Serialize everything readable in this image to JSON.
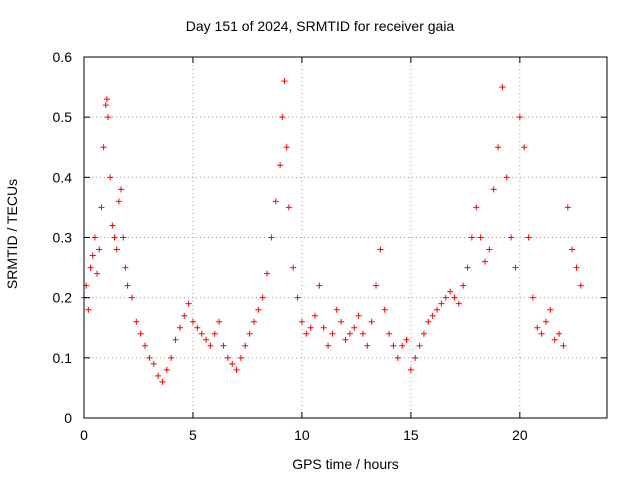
{
  "chart_data": {
    "type": "scatter",
    "title": "Day 151 of 2024, SRMTID for receiver gaia",
    "xlabel": "GPS time / hours",
    "ylabel": "SRMTID / TECUs",
    "xlim": [
      0,
      24
    ],
    "ylim": [
      0,
      0.6
    ],
    "xticks": [
      0,
      5,
      10,
      15,
      20
    ],
    "xtick_labels": [
      "0",
      "5",
      "10",
      "15",
      "20"
    ],
    "yticks": [
      0,
      0.1,
      0.2,
      0.3,
      0.4,
      0.5,
      0.6
    ],
    "ytick_labels": [
      "0",
      "0.1",
      "0.2",
      "0.3",
      "0.4",
      "0.5",
      "0.6"
    ],
    "grid": true,
    "marker": "+",
    "color": "#ff0000",
    "series": [
      {
        "name": "SRMTID",
        "x": [
          0.0,
          0.1,
          0.2,
          0.3,
          0.4,
          0.5,
          0.6,
          0.7,
          0.8,
          0.9,
          1.0,
          1.05,
          1.1,
          1.2,
          1.3,
          1.4,
          1.5,
          1.6,
          1.7,
          1.8,
          1.9,
          2.0,
          2.2,
          2.4,
          2.6,
          2.8,
          3.0,
          3.2,
          3.4,
          3.6,
          3.8,
          4.0,
          4.2,
          4.4,
          4.6,
          4.8,
          5.0,
          5.2,
          5.4,
          5.6,
          5.8,
          6.0,
          6.2,
          6.4,
          6.6,
          6.8,
          7.0,
          7.2,
          7.4,
          7.6,
          7.8,
          8.0,
          8.2,
          8.4,
          8.6,
          8.8,
          9.0,
          9.1,
          9.2,
          9.3,
          9.4,
          9.6,
          9.8,
          10.0,
          10.2,
          10.4,
          10.6,
          10.8,
          11.0,
          11.2,
          11.4,
          11.6,
          11.8,
          12.0,
          12.2,
          12.4,
          12.6,
          12.8,
          13.0,
          13.2,
          13.4,
          13.6,
          13.8,
          14.0,
          14.2,
          14.4,
          14.6,
          14.8,
          15.0,
          15.2,
          15.4,
          15.6,
          15.8,
          16.0,
          16.2,
          16.4,
          16.6,
          16.8,
          17.0,
          17.2,
          17.4,
          17.6,
          17.8,
          18.0,
          18.2,
          18.4,
          18.6,
          18.8,
          19.0,
          19.2,
          19.4,
          19.6,
          19.8,
          20.0,
          20.2,
          20.4,
          20.6,
          20.8,
          21.0,
          21.2,
          21.4,
          21.6,
          21.8,
          22.0,
          22.2,
          22.4,
          22.6,
          22.8
        ],
        "y": [
          0.2,
          0.22,
          0.18,
          0.25,
          0.27,
          0.3,
          0.24,
          0.28,
          0.35,
          0.45,
          0.52,
          0.53,
          0.5,
          0.4,
          0.32,
          0.3,
          0.28,
          0.36,
          0.38,
          0.3,
          0.25,
          0.22,
          0.2,
          0.16,
          0.14,
          0.12,
          0.1,
          0.09,
          0.07,
          0.06,
          0.08,
          0.1,
          0.13,
          0.15,
          0.17,
          0.19,
          0.16,
          0.15,
          0.14,
          0.13,
          0.12,
          0.14,
          0.16,
          0.12,
          0.1,
          0.09,
          0.08,
          0.1,
          0.12,
          0.14,
          0.16,
          0.18,
          0.2,
          0.24,
          0.3,
          0.36,
          0.42,
          0.5,
          0.56,
          0.45,
          0.35,
          0.25,
          0.2,
          0.16,
          0.14,
          0.15,
          0.17,
          0.22,
          0.15,
          0.12,
          0.14,
          0.18,
          0.16,
          0.13,
          0.14,
          0.15,
          0.17,
          0.14,
          0.12,
          0.16,
          0.22,
          0.28,
          0.18,
          0.14,
          0.12,
          0.1,
          0.12,
          0.13,
          0.08,
          0.1,
          0.12,
          0.14,
          0.16,
          0.17,
          0.18,
          0.19,
          0.2,
          0.21,
          0.2,
          0.19,
          0.22,
          0.25,
          0.3,
          0.35,
          0.3,
          0.26,
          0.28,
          0.38,
          0.45,
          0.55,
          0.4,
          0.3,
          0.25,
          0.5,
          0.45,
          0.3,
          0.2,
          0.15,
          0.14,
          0.16,
          0.18,
          0.13,
          0.14,
          0.12,
          0.35,
          0.28,
          0.25,
          0.22
        ]
      }
    ]
  }
}
